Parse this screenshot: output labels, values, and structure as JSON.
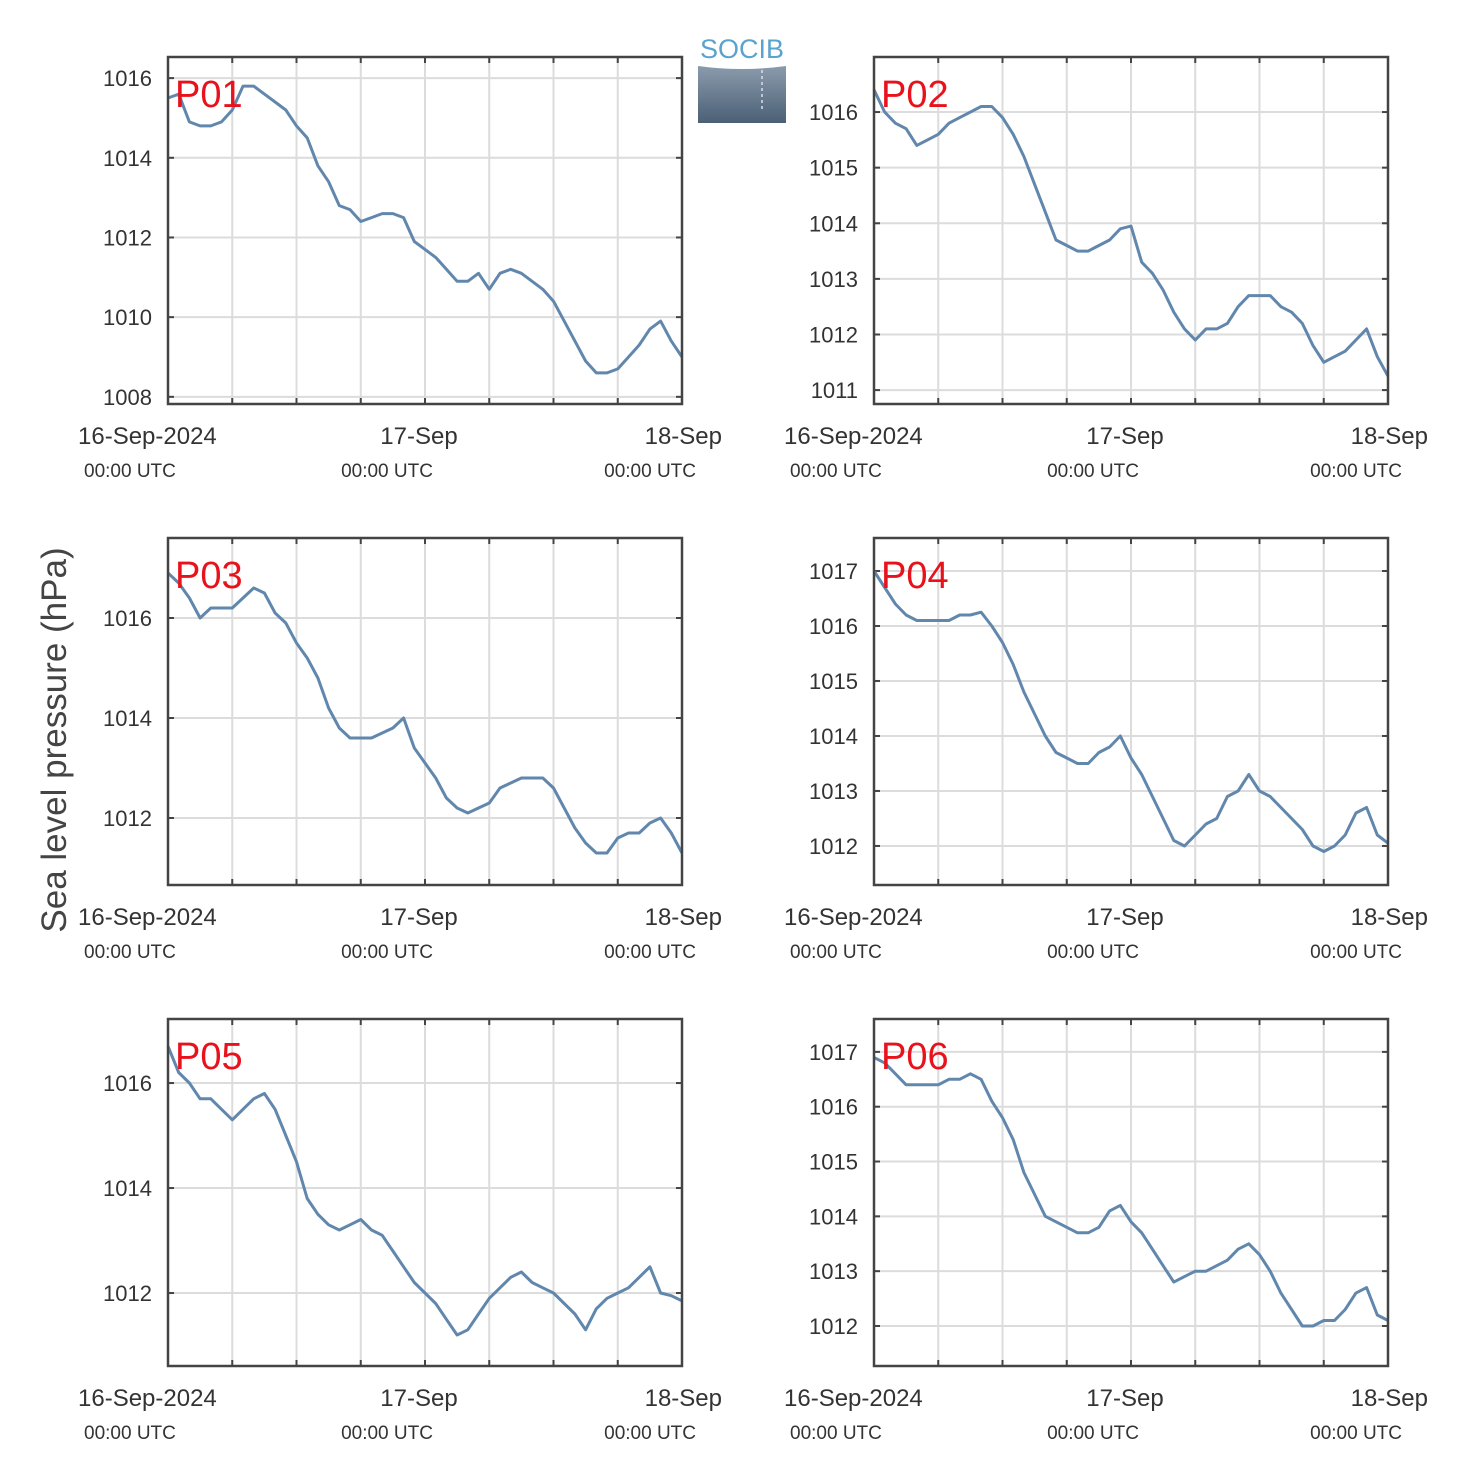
{
  "logo": "SOCIB",
  "ylabel": "Sea level pressure (hPa)",
  "chart_data": [
    {
      "type": "line",
      "title": "P01",
      "color": "#6187ad",
      "grid": true,
      "x": [
        0,
        1,
        2,
        3,
        4,
        5,
        6,
        7,
        8,
        9,
        10,
        11,
        12,
        13,
        14,
        15,
        16,
        17,
        18,
        19,
        20,
        21,
        22,
        23,
        24,
        25,
        26,
        27,
        28,
        29,
        30,
        31,
        32,
        33,
        34,
        35,
        36,
        37,
        38,
        39,
        40,
        41,
        42,
        43,
        44,
        45,
        46,
        47,
        48
      ],
      "values": [
        1015.5,
        1015.6,
        1014.9,
        1014.8,
        1014.8,
        1014.9,
        1015.2,
        1015.8,
        1015.8,
        1015.6,
        1015.4,
        1015.2,
        1014.8,
        1014.5,
        1013.8,
        1013.4,
        1012.8,
        1012.7,
        1012.4,
        1012.5,
        1012.6,
        1012.6,
        1012.5,
        1011.9,
        1011.7,
        1011.5,
        1011.2,
        1010.9,
        1010.9,
        1011.1,
        1010.7,
        1011.1,
        1011.2,
        1011.1,
        1010.9,
        1010.7,
        1010.4,
        1009.9,
        1009.4,
        1008.9,
        1008.6,
        1008.6,
        1008.7,
        1009.0,
        1009.3,
        1009.7,
        1009.9,
        1009.4,
        1009.0
      ],
      "xlim": [
        0,
        48
      ],
      "xticks": [
        {
          "value": 0,
          "label": [
            "16-Sep-2024",
            "00:00 UTC"
          ]
        },
        {
          "value": 24,
          "label": [
            "17-Sep",
            "00:00 UTC"
          ]
        },
        {
          "value": 48,
          "label": [
            "18-Sep",
            "00:00 UTC"
          ]
        }
      ],
      "xminor": [
        6,
        12,
        18,
        30,
        36,
        42
      ],
      "ylim": [
        1007.82,
        1016.53
      ],
      "yticks": [
        1008,
        1010,
        1012,
        1014,
        1016
      ]
    },
    {
      "type": "line",
      "title": "P02",
      "color": "#6187ad",
      "grid": true,
      "x": [
        0,
        1,
        2,
        3,
        4,
        5,
        6,
        7,
        8,
        9,
        10,
        11,
        12,
        13,
        14,
        15,
        16,
        17,
        18,
        19,
        20,
        21,
        22,
        23,
        24,
        25,
        26,
        27,
        28,
        29,
        30,
        31,
        32,
        33,
        34,
        35,
        36,
        37,
        38,
        39,
        40,
        41,
        42,
        43,
        44,
        45,
        46,
        47,
        48
      ],
      "values": [
        1016.4,
        1016.0,
        1015.8,
        1015.7,
        1015.4,
        1015.5,
        1015.6,
        1015.8,
        1015.9,
        1016.0,
        1016.1,
        1016.1,
        1015.9,
        1015.6,
        1015.2,
        1014.7,
        1014.2,
        1013.7,
        1013.6,
        1013.5,
        1013.5,
        1013.6,
        1013.7,
        1013.9,
        1013.95,
        1013.3,
        1013.1,
        1012.8,
        1012.4,
        1012.1,
        1011.9,
        1012.1,
        1012.1,
        1012.2,
        1012.5,
        1012.7,
        1012.7,
        1012.7,
        1012.5,
        1012.4,
        1012.2,
        1011.8,
        1011.5,
        1011.6,
        1011.7,
        1011.9,
        1012.1,
        1011.6,
        1011.25
      ],
      "xlim": [
        0,
        48
      ],
      "xticks": [
        {
          "value": 0,
          "label": [
            "16-Sep-2024",
            "00:00 UTC"
          ]
        },
        {
          "value": 24,
          "label": [
            "17-Sep",
            "00:00 UTC"
          ]
        },
        {
          "value": 48,
          "label": [
            "18-Sep",
            "00:00 UTC"
          ]
        }
      ],
      "xminor": [
        6,
        12,
        18,
        30,
        36,
        42
      ],
      "ylim": [
        1010.75,
        1016.99
      ],
      "yticks": [
        1011,
        1012,
        1013,
        1014,
        1015,
        1016
      ]
    },
    {
      "type": "line",
      "title": "P03",
      "color": "#6187ad",
      "grid": true,
      "x": [
        0,
        1,
        2,
        3,
        4,
        5,
        6,
        7,
        8,
        9,
        10,
        11,
        12,
        13,
        14,
        15,
        16,
        17,
        18,
        19,
        20,
        21,
        22,
        23,
        24,
        25,
        26,
        27,
        28,
        29,
        30,
        31,
        32,
        33,
        34,
        35,
        36,
        37,
        38,
        39,
        40,
        41,
        42,
        43,
        44,
        45,
        46,
        47,
        48
      ],
      "values": [
        1016.9,
        1016.7,
        1016.4,
        1016.0,
        1016.2,
        1016.2,
        1016.2,
        1016.4,
        1016.6,
        1016.5,
        1016.1,
        1015.9,
        1015.5,
        1015.2,
        1014.8,
        1014.2,
        1013.8,
        1013.6,
        1013.6,
        1013.6,
        1013.7,
        1013.8,
        1014.0,
        1013.4,
        1013.1,
        1012.8,
        1012.4,
        1012.2,
        1012.1,
        1012.2,
        1012.3,
        1012.6,
        1012.7,
        1012.8,
        1012.8,
        1012.8,
        1012.6,
        1012.2,
        1011.8,
        1011.5,
        1011.3,
        1011.3,
        1011.6,
        1011.7,
        1011.7,
        1011.9,
        1012.0,
        1011.7,
        1011.3
      ],
      "xlim": [
        0,
        48
      ],
      "xticks": [
        {
          "value": 0,
          "label": [
            "16-Sep-2024",
            "00:00 UTC"
          ]
        },
        {
          "value": 24,
          "label": [
            "17-Sep",
            "00:00 UTC"
          ]
        },
        {
          "value": 48,
          "label": [
            "18-Sep",
            "00:00 UTC"
          ]
        }
      ],
      "xminor": [
        6,
        12,
        18,
        30,
        36,
        42
      ],
      "ylim": [
        1010.66,
        1017.6
      ],
      "yticks": [
        1012,
        1014,
        1016
      ]
    },
    {
      "type": "line",
      "title": "P04",
      "color": "#6187ad",
      "grid": true,
      "x": [
        0,
        1,
        2,
        3,
        4,
        5,
        6,
        7,
        8,
        9,
        10,
        11,
        12,
        13,
        14,
        15,
        16,
        17,
        18,
        19,
        20,
        21,
        22,
        23,
        24,
        25,
        26,
        27,
        28,
        29,
        30,
        31,
        32,
        33,
        34,
        35,
        36,
        37,
        38,
        39,
        40,
        41,
        42,
        43,
        44,
        45,
        46,
        47,
        48
      ],
      "values": [
        1017.0,
        1016.7,
        1016.4,
        1016.2,
        1016.1,
        1016.1,
        1016.1,
        1016.1,
        1016.2,
        1016.2,
        1016.25,
        1016.0,
        1015.7,
        1015.3,
        1014.8,
        1014.4,
        1014.0,
        1013.7,
        1013.6,
        1013.5,
        1013.5,
        1013.7,
        1013.8,
        1014.0,
        1013.6,
        1013.3,
        1012.9,
        1012.5,
        1012.1,
        1012.0,
        1012.2,
        1012.4,
        1012.5,
        1012.9,
        1013.0,
        1013.3,
        1013.0,
        1012.9,
        1012.7,
        1012.5,
        1012.3,
        1012.0,
        1011.9,
        1012.0,
        1012.2,
        1012.6,
        1012.7,
        1012.2,
        1012.05
      ],
      "xlim": [
        0,
        48
      ],
      "xticks": [
        {
          "value": 0,
          "label": [
            "16-Sep-2024",
            "00:00 UTC"
          ]
        },
        {
          "value": 24,
          "label": [
            "17-Sep",
            "00:00 UTC"
          ]
        },
        {
          "value": 48,
          "label": [
            "18-Sep",
            "00:00 UTC"
          ]
        }
      ],
      "xminor": [
        6,
        12,
        18,
        30,
        36,
        42
      ],
      "ylim": [
        1011.29,
        1017.6
      ],
      "yticks": [
        1012,
        1013,
        1014,
        1015,
        1016,
        1017
      ]
    },
    {
      "type": "line",
      "title": "P05",
      "color": "#6187ad",
      "grid": true,
      "x": [
        0,
        1,
        2,
        3,
        4,
        5,
        6,
        7,
        8,
        9,
        10,
        11,
        12,
        13,
        14,
        15,
        16,
        17,
        18,
        19,
        20,
        21,
        22,
        23,
        24,
        25,
        26,
        27,
        28,
        29,
        30,
        31,
        32,
        33,
        34,
        35,
        36,
        37,
        38,
        39,
        40,
        41,
        42,
        43,
        44,
        45,
        46,
        47,
        48
      ],
      "values": [
        1016.7,
        1016.2,
        1016.0,
        1015.7,
        1015.7,
        1015.5,
        1015.3,
        1015.5,
        1015.7,
        1015.8,
        1015.5,
        1015.0,
        1014.5,
        1013.8,
        1013.5,
        1013.3,
        1013.2,
        1013.3,
        1013.4,
        1013.2,
        1013.1,
        1012.8,
        1012.5,
        1012.2,
        1012.0,
        1011.8,
        1011.5,
        1011.2,
        1011.3,
        1011.6,
        1011.9,
        1012.1,
        1012.3,
        1012.4,
        1012.2,
        1012.1,
        1012.0,
        1011.8,
        1011.6,
        1011.3,
        1011.7,
        1011.9,
        1012.0,
        1012.1,
        1012.3,
        1012.5,
        1012.0,
        1011.95,
        1011.85
      ],
      "xlim": [
        0,
        48
      ],
      "xticks": [
        {
          "value": 0,
          "label": [
            "16-Sep-2024",
            "00:00 UTC"
          ]
        },
        {
          "value": 24,
          "label": [
            "17-Sep",
            "00:00 UTC"
          ]
        },
        {
          "value": 48,
          "label": [
            "18-Sep",
            "00:00 UTC"
          ]
        }
      ],
      "xminor": [
        6,
        12,
        18,
        30,
        36,
        42
      ],
      "ylim": [
        1010.61,
        1017.22
      ],
      "yticks": [
        1012,
        1014,
        1016
      ]
    },
    {
      "type": "line",
      "title": "P06",
      "color": "#6187ad",
      "grid": true,
      "x": [
        0,
        1,
        2,
        3,
        4,
        5,
        6,
        7,
        8,
        9,
        10,
        11,
        12,
        13,
        14,
        15,
        16,
        17,
        18,
        19,
        20,
        21,
        22,
        23,
        24,
        25,
        26,
        27,
        28,
        29,
        30,
        31,
        32,
        33,
        34,
        35,
        36,
        37,
        38,
        39,
        40,
        41,
        42,
        43,
        44,
        45,
        46,
        47,
        48
      ],
      "values": [
        1016.9,
        1016.8,
        1016.6,
        1016.4,
        1016.4,
        1016.4,
        1016.4,
        1016.5,
        1016.5,
        1016.6,
        1016.5,
        1016.1,
        1015.8,
        1015.4,
        1014.8,
        1014.4,
        1014.0,
        1013.9,
        1013.8,
        1013.7,
        1013.7,
        1013.8,
        1014.1,
        1014.2,
        1013.9,
        1013.7,
        1013.4,
        1013.1,
        1012.8,
        1012.9,
        1013.0,
        1013.0,
        1013.1,
        1013.2,
        1013.4,
        1013.5,
        1013.3,
        1013.0,
        1012.6,
        1012.3,
        1012.0,
        1012.0,
        1012.1,
        1012.1,
        1012.3,
        1012.6,
        1012.7,
        1012.2,
        1012.1
      ],
      "xlim": [
        0,
        48
      ],
      "xticks": [
        {
          "value": 0,
          "label": [
            "16-Sep-2024",
            "00:00 UTC"
          ]
        },
        {
          "value": 24,
          "label": [
            "17-Sep",
            "00:00 UTC"
          ]
        },
        {
          "value": 48,
          "label": [
            "18-Sep",
            "00:00 UTC"
          ]
        }
      ],
      "xminor": [
        6,
        12,
        18,
        30,
        36,
        42
      ],
      "ylim": [
        1011.27,
        1017.6
      ],
      "yticks": [
        1012,
        1013,
        1014,
        1015,
        1016,
        1017
      ]
    }
  ]
}
